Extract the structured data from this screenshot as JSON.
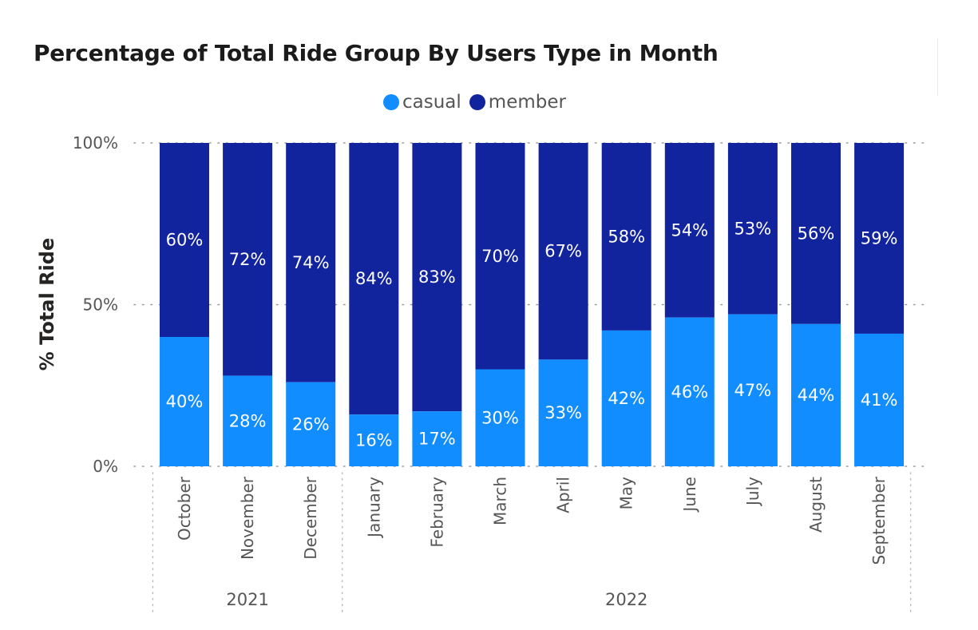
{
  "chart_data": {
    "type": "bar",
    "stacked": "100%",
    "title": "Percentage of Total Ride Group By Users Type in Month",
    "ylabel": "% Total Ride",
    "xlabel": "",
    "ylim": [
      0,
      100
    ],
    "yticks": [
      "0%",
      "50%",
      "100%"
    ],
    "legend_position": "top-center",
    "categories": [
      "October",
      "November",
      "December",
      "January",
      "February",
      "March",
      "April",
      "May",
      "June",
      "July",
      "August",
      "September"
    ],
    "year_groups": [
      {
        "label": "2021",
        "count": 3
      },
      {
        "label": "2022",
        "count": 9
      }
    ],
    "series": [
      {
        "name": "casual",
        "color": "#118dff",
        "values": [
          40,
          28,
          26,
          16,
          17,
          30,
          33,
          42,
          46,
          47,
          44,
          41
        ],
        "labels": [
          "40%",
          "28%",
          "26%",
          "16%",
          "17%",
          "30%",
          "33%",
          "42%",
          "46%",
          "47%",
          "44%",
          "41%"
        ]
      },
      {
        "name": "member",
        "color": "#12239e",
        "values": [
          60,
          72,
          74,
          84,
          83,
          70,
          67,
          58,
          54,
          53,
          56,
          59
        ],
        "labels": [
          "60%",
          "72%",
          "74%",
          "84%",
          "83%",
          "70%",
          "67%",
          "58%",
          "54%",
          "53%",
          "56%",
          "59%"
        ]
      }
    ]
  }
}
